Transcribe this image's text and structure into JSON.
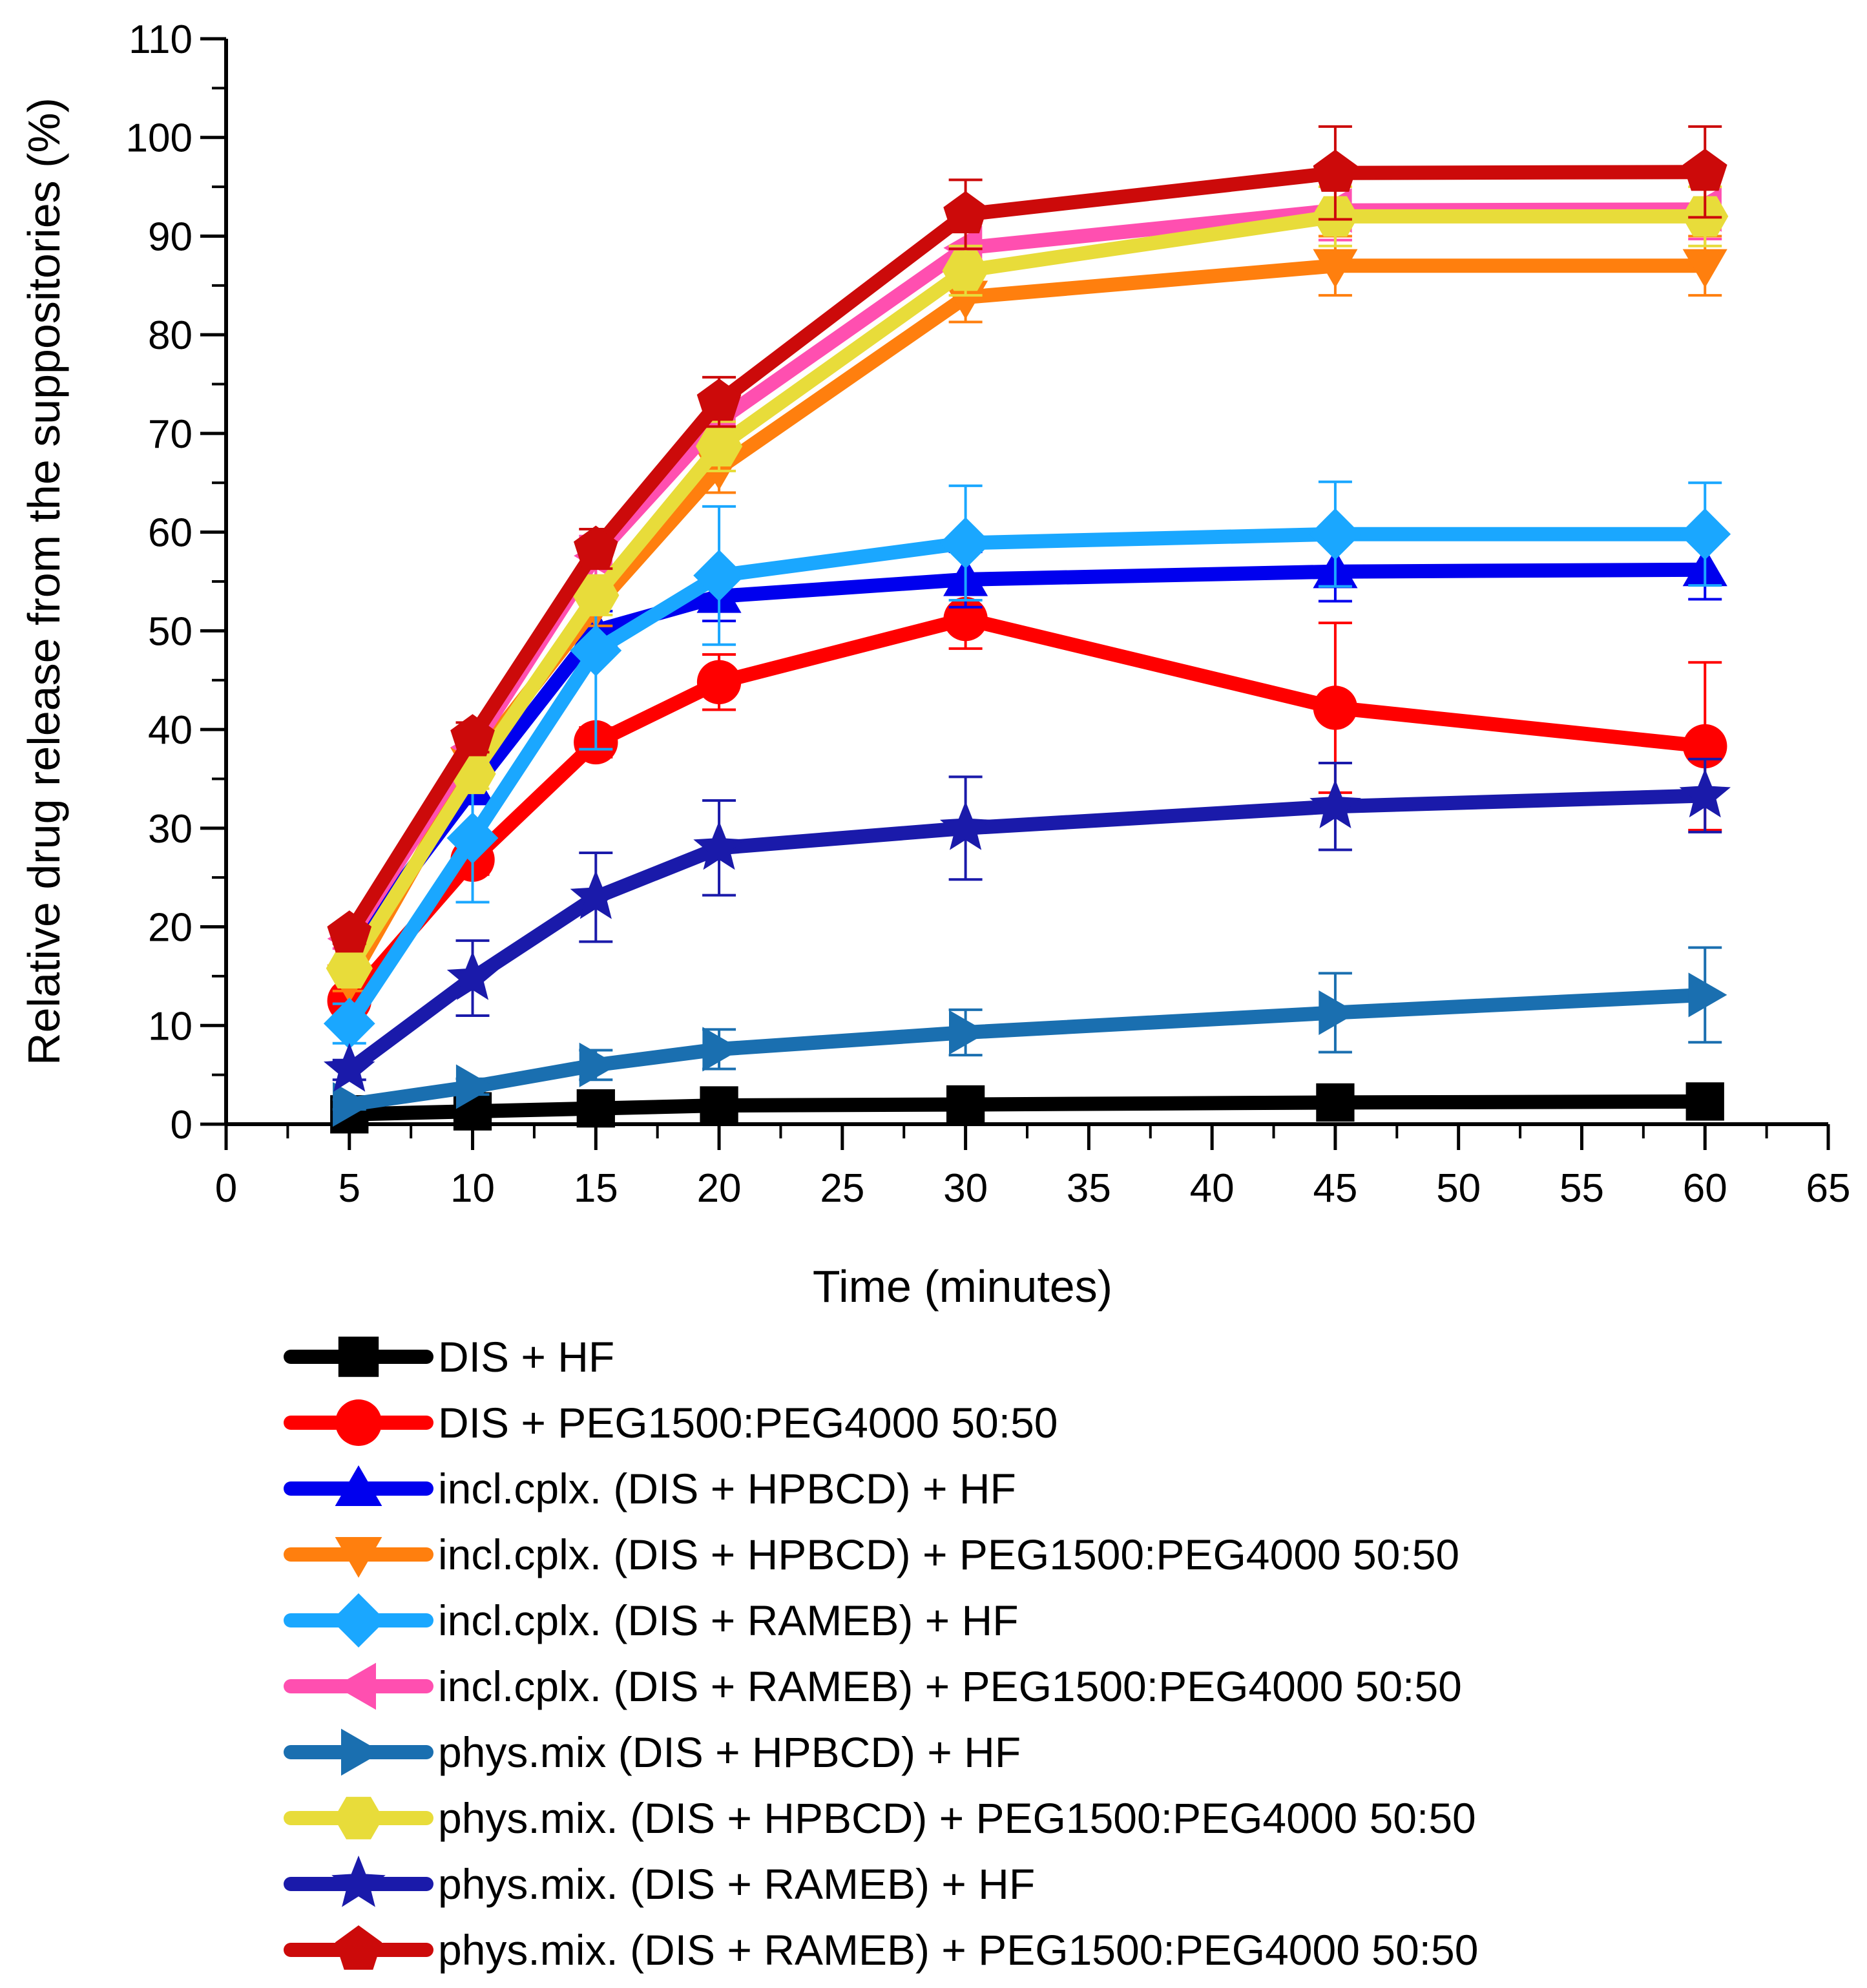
{
  "chart_data": {
    "type": "line",
    "title": "",
    "xlabel": "Time (minutes)",
    "ylabel": "Relative drug release from the suppositories (%)",
    "xlim": [
      0,
      65
    ],
    "ylim": [
      0,
      110
    ],
    "xticks": [
      0,
      5,
      10,
      15,
      20,
      25,
      30,
      35,
      40,
      45,
      50,
      55,
      60,
      65
    ],
    "yticks": [
      0,
      10,
      20,
      30,
      40,
      50,
      60,
      70,
      80,
      90,
      100,
      110
    ],
    "x": [
      5,
      10,
      15,
      20,
      30,
      45,
      60
    ],
    "legend_position": "bottom",
    "series": [
      {
        "name": "DIS + HF",
        "color": "#000000",
        "marker": "square",
        "values": [
          1.0,
          1.3,
          1.6,
          1.9,
          2.0,
          2.2,
          2.3
        ],
        "errors": [
          0.4,
          0.4,
          0.5,
          0.5,
          0.6,
          0.6,
          0.6
        ]
      },
      {
        "name": "DIS + PEG1500:PEG4000 50:50",
        "color": "#ff0000",
        "marker": "circle",
        "values": [
          12.5,
          26.8,
          38.7,
          44.8,
          51.2,
          42.2,
          38.3
        ],
        "errors": [
          1.2,
          1.5,
          1.5,
          2.8,
          3.0,
          8.6,
          8.5
        ]
      },
      {
        "name": "incl.cplx. (DIS + HPBCD) + HF",
        "color": "#0000ee",
        "marker": "triangle-up",
        "values": [
          17.5,
          34.0,
          50.0,
          53.5,
          55.2,
          56.0,
          56.2
        ],
        "errors": [
          1.0,
          1.5,
          2.0,
          2.5,
          2.8,
          3.0,
          3.0
        ]
      },
      {
        "name": "incl.cplx. (DIS + HPBCD) + PEG1500:PEG4000 50:50",
        "color": "#ff7f0e",
        "marker": "triangle-down",
        "values": [
          14.5,
          36.5,
          52.5,
          66.5,
          83.8,
          87.0,
          87.0
        ],
        "errors": [
          1.0,
          1.5,
          2.0,
          2.5,
          2.5,
          3.0,
          3.0
        ]
      },
      {
        "name": "incl.cplx. (DIS + RAMEB) + HF",
        "color": "#1aa7ff",
        "marker": "diamond",
        "values": [
          10.2,
          29.0,
          48.0,
          55.6,
          58.9,
          59.8,
          59.8
        ],
        "errors": [
          2.0,
          6.5,
          10.0,
          7.0,
          5.8,
          5.3,
          5.2
        ]
      },
      {
        "name": "incl.cplx. (DIS + RAMEB) + PEG1500:PEG4000 50:50",
        "color": "#ff4fb0",
        "marker": "triangle-left",
        "values": [
          18.8,
          38.2,
          57.6,
          71.3,
          88.8,
          92.6,
          92.7
        ],
        "errors": [
          1.0,
          1.5,
          2.0,
          2.5,
          2.5,
          3.0,
          3.0
        ]
      },
      {
        "name": "phys.mix (DIS + HPBCD) + HF",
        "color": "#1a6fb0",
        "marker": "triangle-right",
        "values": [
          2.0,
          3.8,
          6.0,
          7.6,
          9.3,
          11.3,
          13.1
        ],
        "errors": [
          0.5,
          0.8,
          1.5,
          2.0,
          2.3,
          4.0,
          4.8
        ]
      },
      {
        "name": "phys.mix. (DIS + HPBCD) + PEG1500:PEG4000 50:50",
        "color": "#e8dc3a",
        "marker": "hexagon",
        "values": [
          15.8,
          35.5,
          53.6,
          68.7,
          86.5,
          92.0,
          92.0
        ],
        "errors": [
          1.0,
          1.5,
          2.0,
          2.5,
          2.5,
          3.0,
          3.0
        ]
      },
      {
        "name": "phys.mix. (DIS + RAMEB) + HF",
        "color": "#1a1aaa",
        "marker": "star",
        "values": [
          5.5,
          14.8,
          23.0,
          28.0,
          30.0,
          32.2,
          33.3
        ],
        "errors": [
          1.0,
          3.8,
          4.5,
          4.8,
          5.2,
          4.4,
          3.7
        ]
      },
      {
        "name": "phys.mix. (DIS + RAMEB) + PEG1500:PEG4000 50:50",
        "color": "#cc0a0a",
        "marker": "pentagon",
        "values": [
          19.3,
          39.2,
          58.3,
          73.2,
          92.2,
          96.4,
          96.5
        ],
        "errors": [
          1.0,
          1.5,
          2.0,
          2.5,
          3.5,
          4.7,
          4.6
        ]
      }
    ]
  }
}
